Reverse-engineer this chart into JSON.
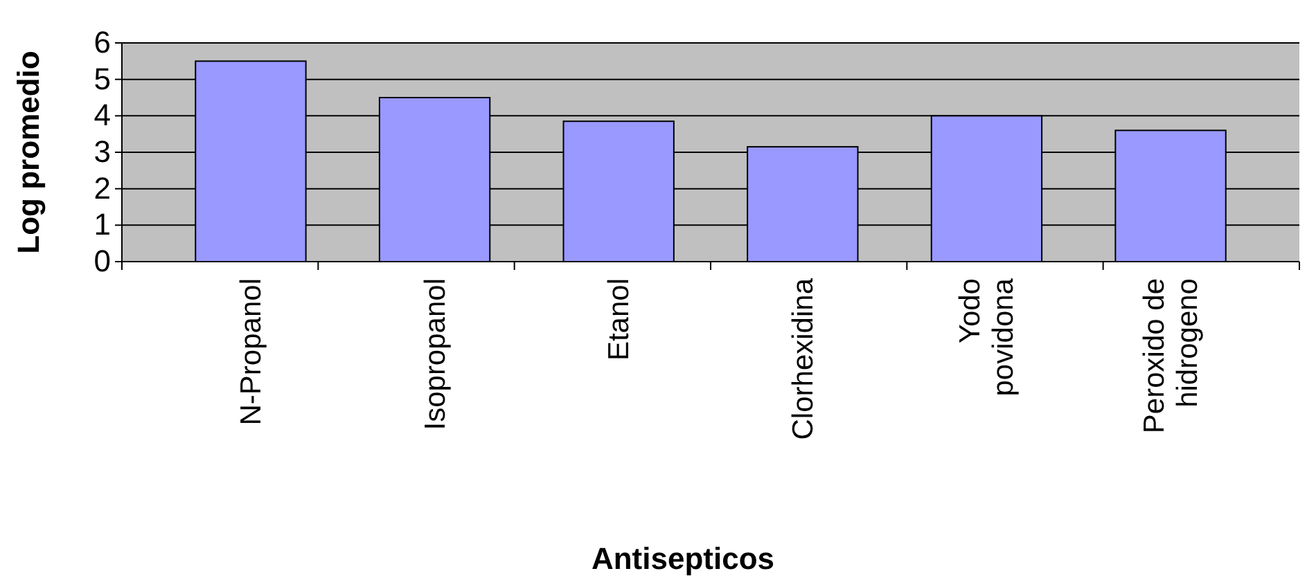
{
  "chart_data": {
    "type": "bar",
    "xlabel": "Antisepticos",
    "ylabel": "Log promedio",
    "categories": [
      "N-Propanol",
      "Isopropanol",
      "Etanol",
      "Clorhexidina",
      "Yodo povidona",
      "Peroxido de hidrogeno"
    ],
    "values": [
      5.5,
      4.5,
      3.85,
      3.15,
      4.0,
      3.6
    ],
    "color": "#9999ff",
    "ylim": [
      0,
      6
    ],
    "yticks": [
      0,
      1,
      2,
      3,
      4,
      5,
      6
    ],
    "grid": "y"
  }
}
